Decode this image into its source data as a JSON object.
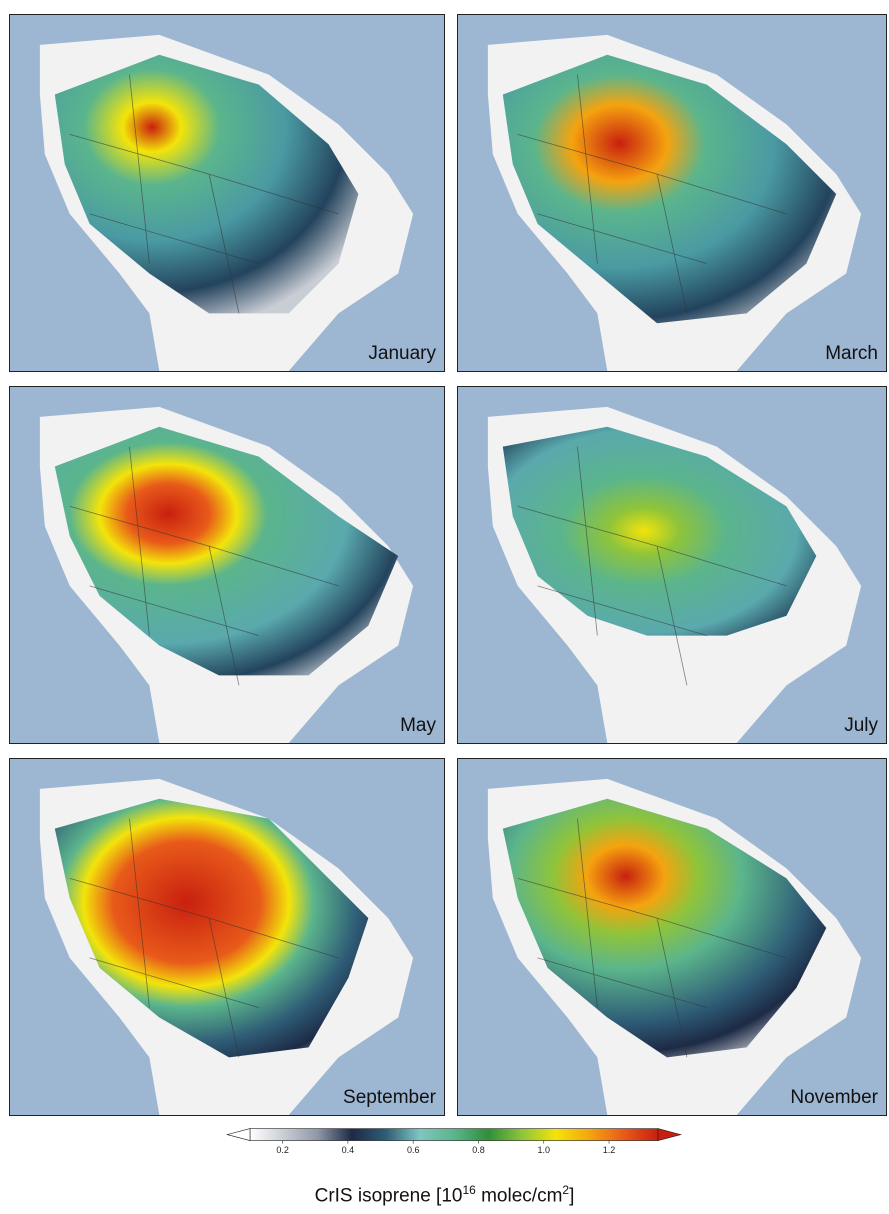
{
  "panels": [
    {
      "month": "January"
    },
    {
      "month": "March"
    },
    {
      "month": "May"
    },
    {
      "month": "July"
    },
    {
      "month": "September"
    },
    {
      "month": "November"
    }
  ],
  "colorbar": {
    "ticks": [
      "0.2",
      "0.4",
      "0.6",
      "0.8",
      "1.0",
      "1.2"
    ],
    "tick_values": [
      0.2,
      0.4,
      0.6,
      0.8,
      1.0,
      1.2
    ],
    "range": [
      0.1,
      1.35
    ],
    "title_main": "CrIS isoprene [10",
    "title_exp": "16",
    "title_mid": " molec/cm",
    "title_exp2": "2",
    "title_end": "]",
    "colors": [
      "#ffffff",
      "#c9cdd4",
      "#8f97a6",
      "#1d2a45",
      "#2f5d77",
      "#7fc6c0",
      "#5bb58c",
      "#2f8f3a",
      "#8fc43a",
      "#f3e40a",
      "#f5a30f",
      "#e85a1a",
      "#c8200f"
    ]
  },
  "map": {
    "ocean_color": "#9db6d2",
    "land_color": "#f2f2f2"
  }
}
